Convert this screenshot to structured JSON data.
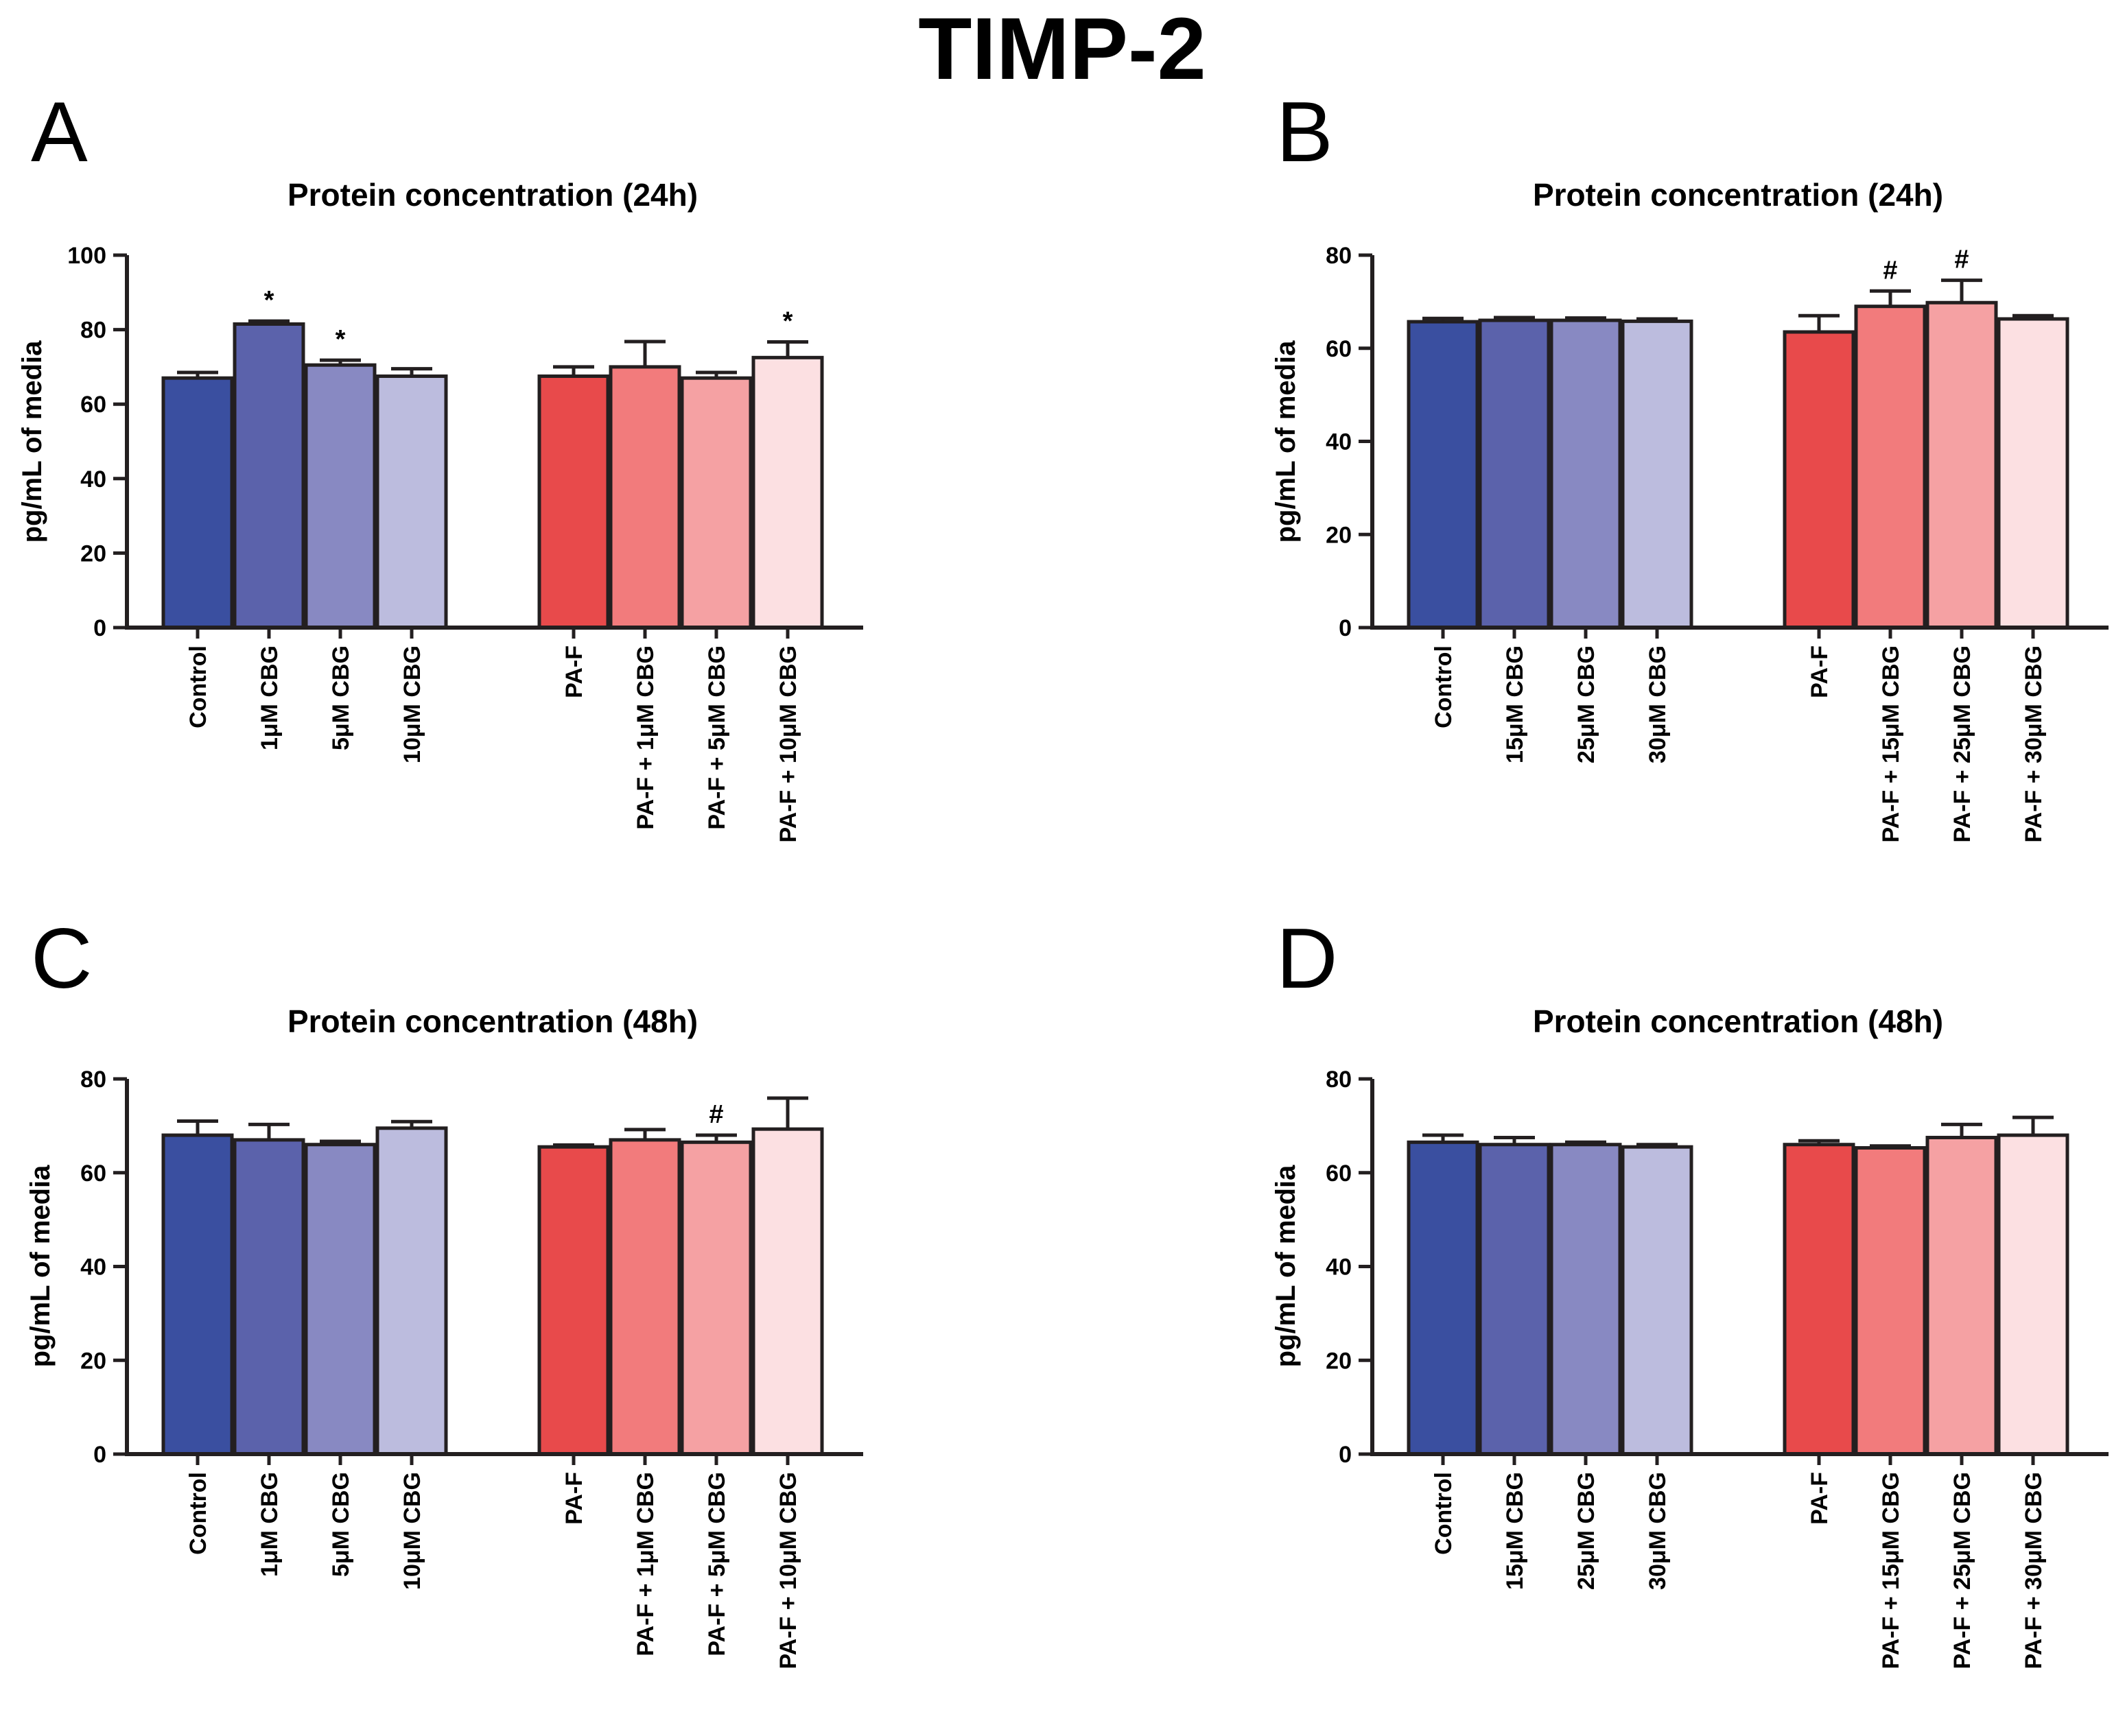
{
  "figure_title": "TIMP-2",
  "chart_data": [
    {
      "panel": "A",
      "type": "bar",
      "title": "Protein concentration (24h)",
      "ylabel": "pg/mL of media",
      "xlabel": "",
      "ylim": [
        0,
        100
      ],
      "yticks": [
        0,
        20,
        40,
        60,
        80,
        100
      ],
      "categories": [
        "Control",
        "1μM CBG",
        "5μM CBG",
        "10μM CBG",
        "PA-F",
        "PA-F + 1μM CBG",
        "PA-F + 5μM CBG",
        "PA-F + 10μM CBG"
      ],
      "values": [
        67,
        81.5,
        70.5,
        67.5,
        67.5,
        70,
        67,
        72.5
      ],
      "errors": [
        1.5,
        0.8,
        1.3,
        2,
        2.5,
        6.8,
        1.5,
        4.2
      ],
      "annotations": [
        "",
        "*",
        "*",
        "",
        "",
        "",
        "",
        "*"
      ],
      "colors": [
        "#3a4fa0",
        "#5b62ab",
        "#8889c2",
        "#bcbcde",
        "#e84a4b",
        "#f27b7c",
        "#f5a1a3",
        "#fce0e2"
      ]
    },
    {
      "panel": "B",
      "type": "bar",
      "title": "Protein concentration (24h)",
      "ylabel": "pg/mL of media",
      "xlabel": "",
      "ylim": [
        0,
        80
      ],
      "yticks": [
        0,
        20,
        40,
        60,
        80
      ],
      "categories": [
        "Control",
        "15μM CBG",
        "25μM CBG",
        "30μM CBG",
        "PA-F",
        "PA-F + 15μM CBG",
        "PA-F + 25μM CBG",
        "PA-F + 30μM CBG"
      ],
      "values": [
        65.7,
        66,
        66,
        65.8,
        63.5,
        69,
        69.8,
        66.3
      ],
      "errors": [
        0.7,
        0.6,
        0.5,
        0.5,
        3.5,
        3.3,
        4.8,
        0.7
      ],
      "annotations": [
        "",
        "",
        "",
        "",
        "",
        "#",
        "#",
        ""
      ],
      "colors": [
        "#3a4fa0",
        "#5b62ab",
        "#8889c2",
        "#bcbcde",
        "#e84a4b",
        "#f27b7c",
        "#f5a1a3",
        "#fce0e2"
      ]
    },
    {
      "panel": "C",
      "type": "bar",
      "title": "Protein concentration (48h)",
      "ylabel": "pg/mL of media",
      "xlabel": "",
      "ylim": [
        0,
        80
      ],
      "yticks": [
        0,
        20,
        40,
        60,
        80
      ],
      "categories": [
        "Control",
        "1μM CBG",
        "5μM CBG",
        "10μM CBG",
        "PA-F",
        "PA-F + 1μM CBG",
        "PA-F + 5μM CBG",
        "PA-F + 10μM CBG"
      ],
      "values": [
        68,
        67,
        66,
        69.5,
        65.5,
        67,
        66.5,
        69.3
      ],
      "errors": [
        3,
        3.3,
        0.7,
        1.4,
        0.4,
        2.2,
        1.5,
        6.6
      ],
      "annotations": [
        "",
        "",
        "",
        "",
        "",
        "",
        "#",
        ""
      ],
      "colors": [
        "#3a4fa0",
        "#5b62ab",
        "#8889c2",
        "#bcbcde",
        "#e84a4b",
        "#f27b7c",
        "#f5a1a3",
        "#fce0e2"
      ]
    },
    {
      "panel": "D",
      "type": "bar",
      "title": "Protein concentration (48h)",
      "ylabel": "pg/mL of media",
      "xlabel": "",
      "ylim": [
        0,
        80
      ],
      "yticks": [
        0,
        20,
        40,
        60,
        80
      ],
      "categories": [
        "Control",
        "15μM CBG",
        "25μM CBG",
        "30μM CBG",
        "PA-F",
        "PA-F + 15μM CBG",
        "PA-F + 25μM CBG",
        "PA-F + 30μM CBG"
      ],
      "values": [
        66.5,
        66,
        66,
        65.5,
        66,
        65.3,
        67.5,
        68
      ],
      "errors": [
        1.5,
        1.5,
        0.5,
        0.5,
        0.8,
        0.4,
        2.8,
        3.8
      ],
      "annotations": [
        "",
        "",
        "",
        "",
        "",
        "",
        "",
        ""
      ],
      "colors": [
        "#3a4fa0",
        "#5b62ab",
        "#8889c2",
        "#bcbcde",
        "#e84a4b",
        "#f27b7c",
        "#f5a1a3",
        "#fce0e2"
      ]
    }
  ]
}
